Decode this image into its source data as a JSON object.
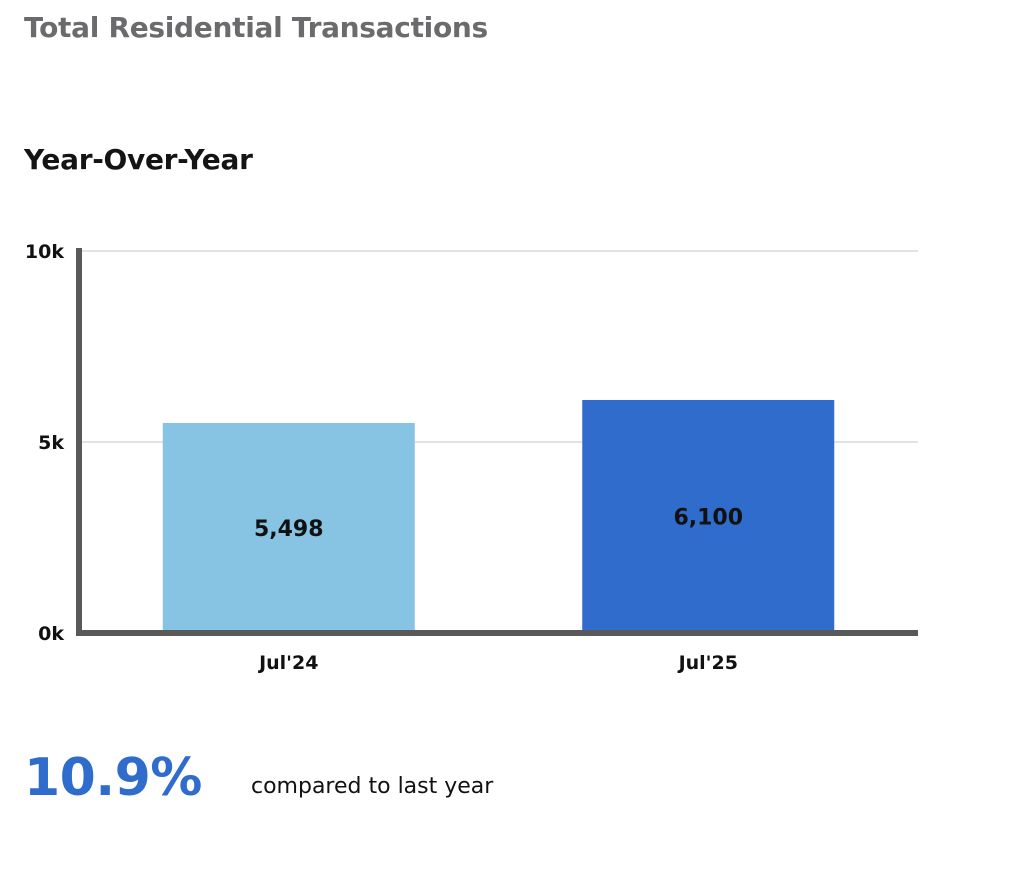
{
  "header": {
    "title": "Total Residential Transactions"
  },
  "chart_data": {
    "type": "bar",
    "title": "Year-Over-Year",
    "categories": [
      "Jul'24",
      "Jul'25"
    ],
    "values": [
      5498,
      6100
    ],
    "value_labels": [
      "5,498",
      "6,100"
    ],
    "bar_colors": [
      "#87c4e4",
      "#2f6ccc"
    ],
    "ylim": [
      0,
      10000
    ],
    "yticks": [
      0,
      5000,
      10000
    ],
    "ytick_labels": [
      "0k",
      "5k",
      "10k"
    ],
    "grid": true,
    "xlabel": "",
    "ylabel": ""
  },
  "summary": {
    "change_value": "10.9%",
    "change_label": "compared to last year",
    "accent_color": "#2f6ccc"
  }
}
